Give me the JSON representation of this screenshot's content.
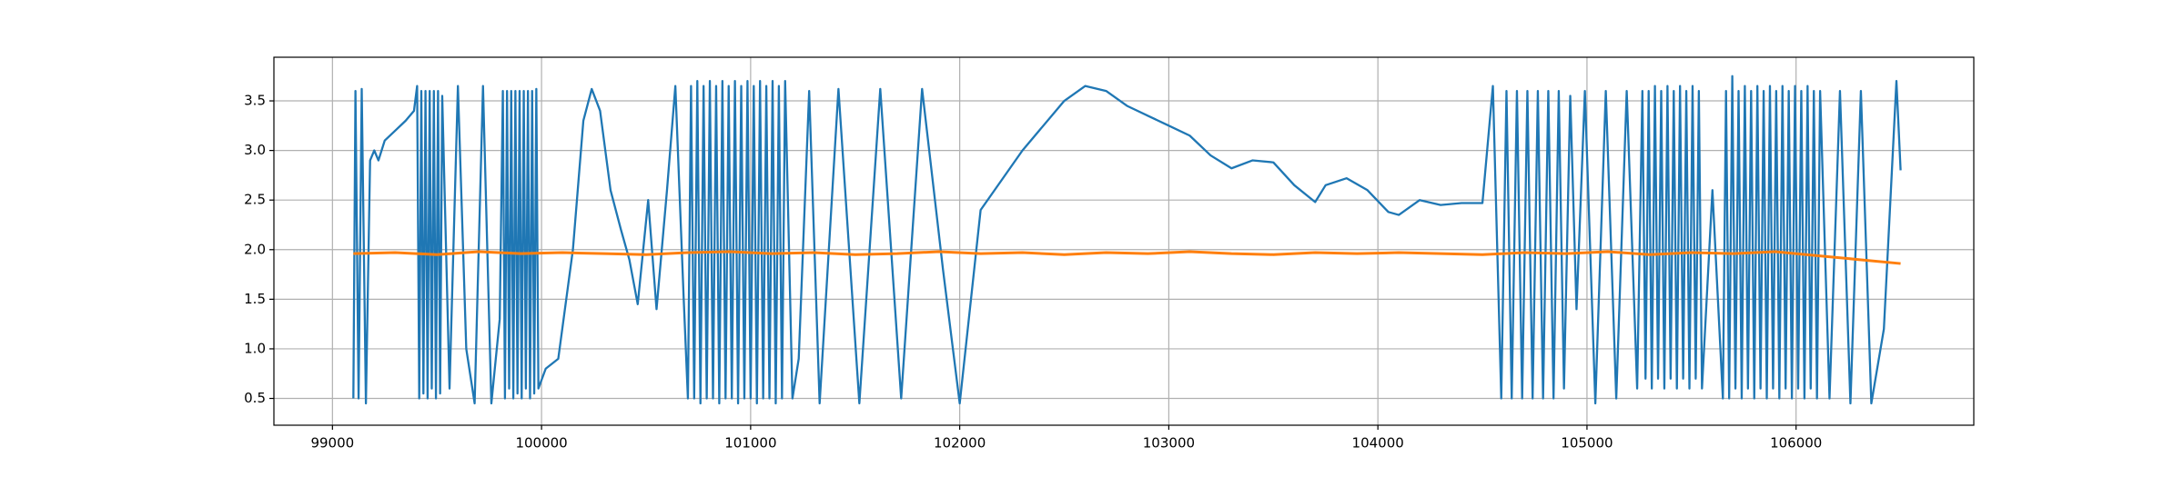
{
  "chart_data": {
    "type": "line",
    "xlim": [
      98720,
      106850
    ],
    "ylim": [
      0.23,
      3.94
    ],
    "xticks": [
      99000,
      100000,
      101000,
      102000,
      103000,
      104000,
      105000,
      106000
    ],
    "yticks": [
      0.5,
      {
        "value": 1.0,
        "label": "1.0"
      },
      1.5,
      {
        "value": 2.0,
        "label": "2.0"
      },
      2.5,
      {
        "value": 3.0,
        "label": "3.0"
      },
      3.5
    ],
    "grid": true,
    "series": [
      {
        "color": "#1f77b4",
        "x": [
          99100,
          99110,
          99125,
          99140,
          99160,
          99180,
          99200,
          99220,
          99250,
          99300,
          99350,
          99390,
          99405,
          99415,
          99425,
          99435,
          99445,
          99455,
          99465,
          99475,
          99485,
          99495,
          99505,
          99515,
          99525,
          99560,
          99600,
          99640,
          99680,
          99720,
          99760,
          99800,
          99815,
          99825,
          99835,
          99845,
          99855,
          99865,
          99875,
          99885,
          99895,
          99905,
          99915,
          99925,
          99935,
          99945,
          99955,
          99965,
          99975,
          99985,
          100020,
          100080,
          100150,
          100200,
          100240,
          100280,
          100330,
          100380,
          100420,
          100460,
          100510,
          100550,
          100600,
          100640,
          100680,
          100700,
          100715,
          100730,
          100745,
          100760,
          100775,
          100790,
          100805,
          100820,
          100835,
          100850,
          100865,
          100880,
          100895,
          100910,
          100925,
          100940,
          100955,
          100970,
          100985,
          101000,
          101015,
          101030,
          101045,
          101060,
          101075,
          101090,
          101105,
          101120,
          101135,
          101150,
          101165,
          101200,
          101230,
          101280,
          101330,
          101420,
          101520,
          101620,
          101720,
          101820,
          101920,
          102000,
          102100,
          102200,
          102300,
          102400,
          102500,
          102600,
          102700,
          102800,
          102900,
          103000,
          103100,
          103200,
          103300,
          103400,
          103500,
          103600,
          103700,
          103750,
          103850,
          103950,
          104050,
          104100,
          104200,
          104300,
          104400,
          104500,
          104550,
          104590,
          104615,
          104640,
          104665,
          104690,
          104715,
          104740,
          104765,
          104790,
          104815,
          104840,
          104865,
          104890,
          104920,
          104950,
          104990,
          105040,
          105090,
          105140,
          105190,
          105240,
          105265,
          105280,
          105295,
          105310,
          105325,
          105340,
          105355,
          105370,
          105385,
          105400,
          105415,
          105430,
          105445,
          105460,
          105475,
          105490,
          105505,
          105520,
          105535,
          105550,
          105600,
          105650,
          105665,
          105680,
          105695,
          105710,
          105725,
          105740,
          105755,
          105770,
          105785,
          105800,
          105815,
          105830,
          105845,
          105860,
          105875,
          105890,
          105905,
          105920,
          105935,
          105950,
          105965,
          105980,
          105995,
          106010,
          106025,
          106040,
          106055,
          106070,
          106085,
          106100,
          106115,
          106160,
          106210,
          106260,
          106310,
          106360,
          106420,
          106480,
          106500
        ],
        "values": [
          0.5,
          3.6,
          0.5,
          3.62,
          0.45,
          2.9,
          3.0,
          2.9,
          3.1,
          3.2,
          3.3,
          3.4,
          3.65,
          0.5,
          3.6,
          0.55,
          3.6,
          0.5,
          3.6,
          0.6,
          3.6,
          0.5,
          3.6,
          0.55,
          3.55,
          0.6,
          3.65,
          1.0,
          0.45,
          3.65,
          0.45,
          1.3,
          3.6,
          0.5,
          3.6,
          0.6,
          3.6,
          0.5,
          3.6,
          0.55,
          3.6,
          0.5,
          3.6,
          0.6,
          3.6,
          0.5,
          3.6,
          0.55,
          3.62,
          0.6,
          0.8,
          0.9,
          2.0,
          3.3,
          3.62,
          3.4,
          2.6,
          2.2,
          1.9,
          1.45,
          2.5,
          1.4,
          2.6,
          3.65,
          1.5,
          0.5,
          3.65,
          0.5,
          3.7,
          0.45,
          3.65,
          0.5,
          3.7,
          0.5,
          3.65,
          0.45,
          3.7,
          0.5,
          3.65,
          0.5,
          3.7,
          0.45,
          3.65,
          0.5,
          3.7,
          0.5,
          3.65,
          0.45,
          3.7,
          0.5,
          3.65,
          0.5,
          3.7,
          0.45,
          3.65,
          0.5,
          3.7,
          0.5,
          0.9,
          3.6,
          0.45,
          3.62,
          0.45,
          3.62,
          0.5,
          3.62,
          1.8,
          0.45,
          2.4,
          2.7,
          3.0,
          3.25,
          3.5,
          3.65,
          3.6,
          3.45,
          3.35,
          3.25,
          3.15,
          2.95,
          2.82,
          2.9,
          2.88,
          2.65,
          2.48,
          2.65,
          2.72,
          2.6,
          2.38,
          2.35,
          2.5,
          2.45,
          2.47,
          2.47,
          3.65,
          0.5,
          3.6,
          0.5,
          3.6,
          0.5,
          3.6,
          0.5,
          3.6,
          0.5,
          3.6,
          0.5,
          3.6,
          0.6,
          3.55,
          1.4,
          3.6,
          0.45,
          3.6,
          0.5,
          3.6,
          0.6,
          3.6,
          0.7,
          3.6,
          0.6,
          3.65,
          0.7,
          3.6,
          0.6,
          3.65,
          0.7,
          3.6,
          0.6,
          3.65,
          0.7,
          3.6,
          0.6,
          3.65,
          0.7,
          3.6,
          0.6,
          2.6,
          0.5,
          3.6,
          0.5,
          3.75,
          0.6,
          3.6,
          0.5,
          3.65,
          0.6,
          3.6,
          0.5,
          3.65,
          0.6,
          3.6,
          0.5,
          3.65,
          0.6,
          3.6,
          0.5,
          3.65,
          0.6,
          3.6,
          0.5,
          3.65,
          0.6,
          3.6,
          0.5,
          3.65,
          0.6,
          3.6,
          0.5,
          3.6,
          0.5,
          3.6,
          0.45,
          3.6,
          0.45,
          1.2,
          3.7,
          2.8
        ]
      },
      {
        "color": "#ff7f0e",
        "x": [
          99100,
          99300,
          99500,
          99700,
          99900,
          100100,
          100300,
          100500,
          100700,
          100900,
          101100,
          101300,
          101500,
          101700,
          101900,
          102100,
          102300,
          102500,
          102700,
          102900,
          103100,
          103300,
          103500,
          103700,
          103900,
          104100,
          104300,
          104500,
          104700,
          104900,
          105100,
          105300,
          105500,
          105700,
          105900,
          106100,
          106300,
          106500
        ],
        "values": [
          1.96,
          1.97,
          1.95,
          1.98,
          1.96,
          1.97,
          1.96,
          1.95,
          1.97,
          1.98,
          1.96,
          1.97,
          1.95,
          1.96,
          1.98,
          1.96,
          1.97,
          1.95,
          1.97,
          1.96,
          1.98,
          1.96,
          1.95,
          1.97,
          1.96,
          1.97,
          1.96,
          1.95,
          1.97,
          1.96,
          1.98,
          1.95,
          1.97,
          1.96,
          1.98,
          1.94,
          1.9,
          1.86
        ]
      }
    ]
  }
}
